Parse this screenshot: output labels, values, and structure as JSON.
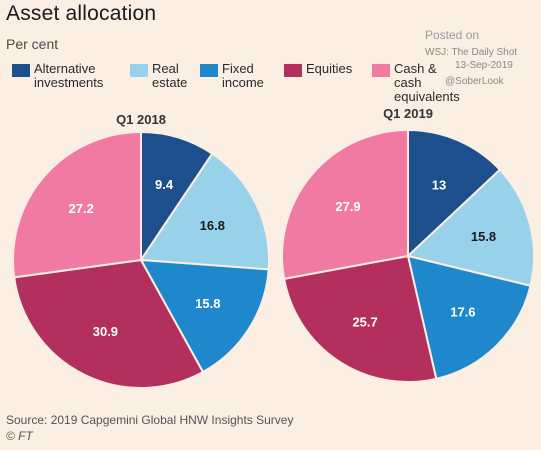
{
  "title": "Asset allocation",
  "subtitle": "Per cent",
  "watermark": {
    "line1": "Posted on",
    "line2": "WSJ: The Daily Shot",
    "line3": "13-Sep-2019",
    "line4": "@SoberLook"
  },
  "legend": [
    {
      "label": "Alternative\ninvestments",
      "color": "#1d4f8c"
    },
    {
      "label": "Real\nestate",
      "color": "#97d1ea"
    },
    {
      "label": "Fixed\nincome",
      "color": "#1f87cc"
    },
    {
      "label": "Equities",
      "color": "#b3305e"
    },
    {
      "label": "Cash & cash\nequivalents",
      "color": "#f07aa2"
    }
  ],
  "source": "Source: 2019 Capgemini Global HNW Insights Survey",
  "credit": "© FT",
  "chart_data": {
    "type": "pie",
    "categories": [
      "Alternative investments",
      "Real estate",
      "Fixed income",
      "Equities",
      "Cash & cash equivalents"
    ],
    "colors": [
      "#1d4f8c",
      "#97d1ea",
      "#1f87cc",
      "#b3305e",
      "#f07aa2"
    ],
    "series": [
      {
        "name": "Q1 2018",
        "values": [
          9.4,
          16.8,
          15.8,
          30.9,
          27.2
        ],
        "labels": [
          "9.4",
          "16.8",
          "15.8",
          "30.9",
          "27.2"
        ]
      },
      {
        "name": "Q1 2019",
        "values": [
          13,
          15.8,
          17.6,
          25.7,
          27.9
        ],
        "labels": [
          "13",
          "15.8",
          "17.6",
          "25.7",
          "27.9"
        ]
      }
    ]
  }
}
